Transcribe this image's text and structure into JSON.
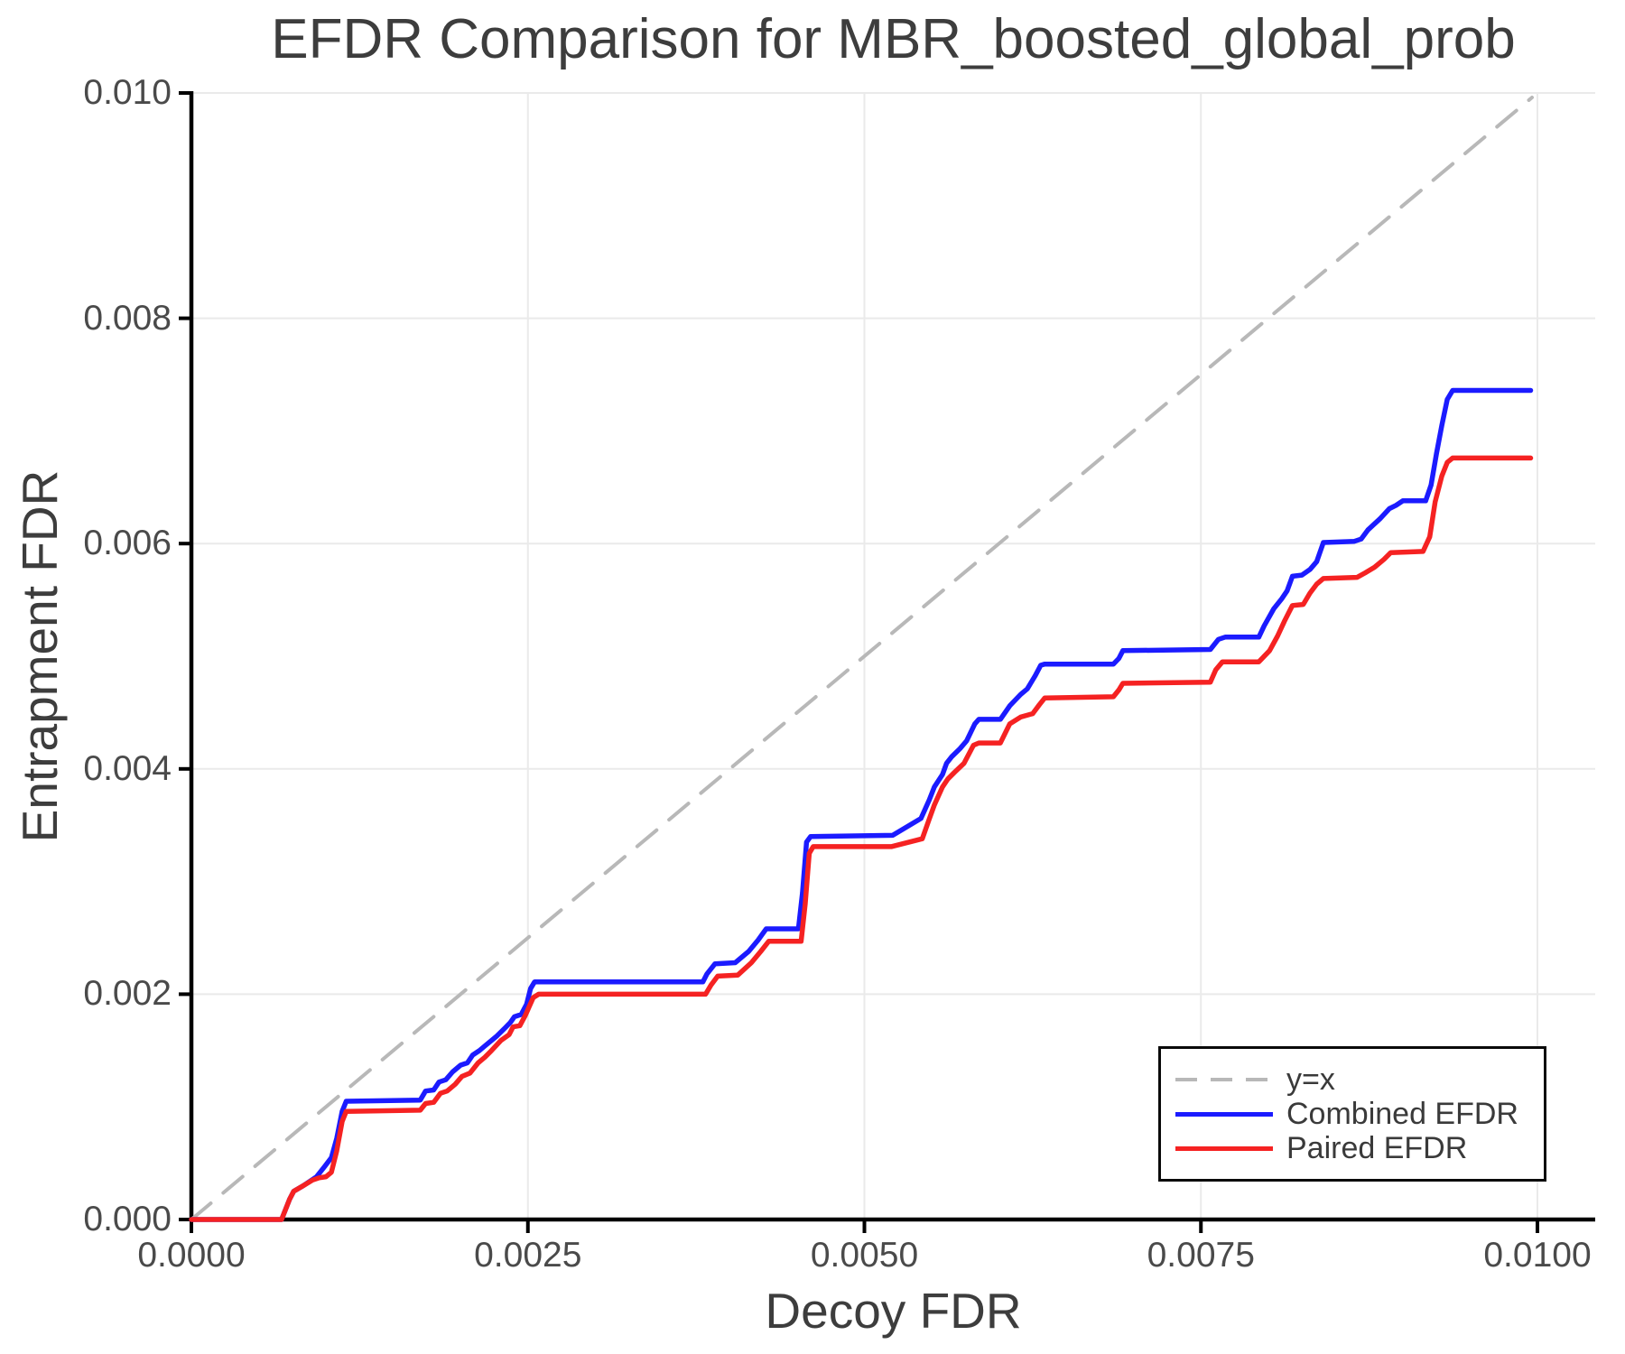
{
  "chart": {
    "title": "EFDR Comparison for MBR_boosted_global_prob",
    "xlabel": "Decoy FDR",
    "ylabel": "Entrapment FDR"
  },
  "chart_data": {
    "type": "line",
    "title": "EFDR Comparison for MBR_boosted_global_prob",
    "xlabel": "Decoy FDR",
    "ylabel": "Entrapment FDR",
    "xlim": [
      0.0,
      0.010428
    ],
    "ylim": [
      0.0,
      0.01
    ],
    "grid": true,
    "legend_position": "lower right",
    "background": "#ffffff",
    "grid_color": "#eaeaea",
    "spine_color": "#000000",
    "text_color": "#3d3d3d",
    "tick_text_color": "#4a4a4a",
    "x_ticks": {
      "values": [
        0.0,
        0.0025,
        0.005,
        0.0075,
        0.01
      ],
      "labels": [
        "0.0000",
        "0.0025",
        "0.0050",
        "0.0075",
        "0.0100"
      ]
    },
    "y_ticks": {
      "values": [
        0.0,
        0.002,
        0.004,
        0.006,
        0.008,
        0.01
      ],
      "labels": [
        "0.000",
        "0.002",
        "0.004",
        "0.006",
        "0.008",
        "0.010"
      ]
    },
    "series": [
      {
        "name": "y=x",
        "color": "#b8b8b8",
        "dashed": true,
        "width": 4,
        "points": [
          [
            0.0,
            0.0
          ],
          [
            0.00996,
            0.00996
          ]
        ]
      },
      {
        "name": "Combined EFDR",
        "color": "#1b1bff",
        "dashed": false,
        "width": 5.5,
        "points": [
          [
            0.0,
            0.0
          ],
          [
            0.00067,
            0.0
          ],
          [
            0.00073,
            0.00018
          ],
          [
            0.00076,
            0.00025
          ],
          [
            0.00083,
            0.0003
          ],
          [
            0.00093,
            0.00038
          ],
          [
            0.00099,
            0.00047
          ],
          [
            0.00104,
            0.00055
          ],
          [
            0.00108,
            0.00072
          ],
          [
            0.00112,
            0.00096
          ],
          [
            0.00115,
            0.00105
          ],
          [
            0.0017,
            0.00106
          ],
          [
            0.00174,
            0.00114
          ],
          [
            0.0018,
            0.00115
          ],
          [
            0.00184,
            0.00122
          ],
          [
            0.00189,
            0.00124
          ],
          [
            0.00194,
            0.00131
          ],
          [
            0.002,
            0.00137
          ],
          [
            0.00205,
            0.00139
          ],
          [
            0.00209,
            0.00146
          ],
          [
            0.00214,
            0.0015
          ],
          [
            0.00218,
            0.00154
          ],
          [
            0.00223,
            0.00159
          ],
          [
            0.00227,
            0.00163
          ],
          [
            0.00233,
            0.0017
          ],
          [
            0.00237,
            0.00175
          ],
          [
            0.0024,
            0.0018
          ],
          [
            0.00245,
            0.00182
          ],
          [
            0.00249,
            0.00191
          ],
          [
            0.00252,
            0.00205
          ],
          [
            0.00255,
            0.00211
          ],
          [
            0.0038,
            0.00211
          ],
          [
            0.00383,
            0.00218
          ],
          [
            0.00389,
            0.00227
          ],
          [
            0.00404,
            0.00228
          ],
          [
            0.00414,
            0.00238
          ],
          [
            0.00421,
            0.00248
          ],
          [
            0.00427,
            0.00258
          ],
          [
            0.00451,
            0.00258
          ],
          [
            0.00454,
            0.0029
          ],
          [
            0.00457,
            0.00335
          ],
          [
            0.0046,
            0.0034
          ],
          [
            0.00521,
            0.00341
          ],
          [
            0.00542,
            0.00356
          ],
          [
            0.00548,
            0.00372
          ],
          [
            0.00552,
            0.00384
          ],
          [
            0.00558,
            0.00395
          ],
          [
            0.00561,
            0.00405
          ],
          [
            0.00565,
            0.00411
          ],
          [
            0.00571,
            0.00418
          ],
          [
            0.00576,
            0.00425
          ],
          [
            0.00582,
            0.0044
          ],
          [
            0.00585,
            0.00444
          ],
          [
            0.00601,
            0.00444
          ],
          [
            0.00608,
            0.00456
          ],
          [
            0.00616,
            0.00466
          ],
          [
            0.00621,
            0.00471
          ],
          [
            0.00627,
            0.00483
          ],
          [
            0.00631,
            0.00492
          ],
          [
            0.00634,
            0.00493
          ],
          [
            0.00685,
            0.00493
          ],
          [
            0.00689,
            0.00498
          ],
          [
            0.00692,
            0.00505
          ],
          [
            0.00757,
            0.00506
          ],
          [
            0.00763,
            0.00515
          ],
          [
            0.00768,
            0.00517
          ],
          [
            0.00793,
            0.00517
          ],
          [
            0.00797,
            0.00527
          ],
          [
            0.00804,
            0.00542
          ],
          [
            0.0081,
            0.00551
          ],
          [
            0.00814,
            0.00558
          ],
          [
            0.00818,
            0.00571
          ],
          [
            0.00825,
            0.00572
          ],
          [
            0.00831,
            0.00577
          ],
          [
            0.00836,
            0.00584
          ],
          [
            0.00841,
            0.00601
          ],
          [
            0.00864,
            0.00602
          ],
          [
            0.00869,
            0.00604
          ],
          [
            0.00874,
            0.00612
          ],
          [
            0.00883,
            0.00622
          ],
          [
            0.0089,
            0.00631
          ],
          [
            0.00895,
            0.00634
          ],
          [
            0.009,
            0.00638
          ],
          [
            0.00917,
            0.00638
          ],
          [
            0.00921,
            0.00652
          ],
          [
            0.00925,
            0.0068
          ],
          [
            0.00929,
            0.00705
          ],
          [
            0.00933,
            0.00728
          ],
          [
            0.00937,
            0.00736
          ],
          [
            0.00995,
            0.00736
          ]
        ]
      },
      {
        "name": "Paired EFDR",
        "color": "#f52222",
        "dashed": false,
        "width": 5.5,
        "points": [
          [
            0.0,
            0.0
          ],
          [
            0.00067,
            0.0
          ],
          [
            0.00073,
            0.00018
          ],
          [
            0.00076,
            0.00025
          ],
          [
            0.00083,
            0.0003
          ],
          [
            0.0009,
            0.00035
          ],
          [
            0.00095,
            0.00037
          ],
          [
            0.001,
            0.00038
          ],
          [
            0.00104,
            0.00042
          ],
          [
            0.00108,
            0.00061
          ],
          [
            0.00112,
            0.00087
          ],
          [
            0.00115,
            0.00096
          ],
          [
            0.0017,
            0.00097
          ],
          [
            0.00174,
            0.00103
          ],
          [
            0.0018,
            0.00104
          ],
          [
            0.00185,
            0.00112
          ],
          [
            0.0019,
            0.00114
          ],
          [
            0.00196,
            0.0012
          ],
          [
            0.00201,
            0.00127
          ],
          [
            0.00207,
            0.0013
          ],
          [
            0.00213,
            0.00139
          ],
          [
            0.00218,
            0.00144
          ],
          [
            0.00223,
            0.0015
          ],
          [
            0.0023,
            0.00159
          ],
          [
            0.00236,
            0.00164
          ],
          [
            0.00239,
            0.00171
          ],
          [
            0.00244,
            0.00172
          ],
          [
            0.00248,
            0.00181
          ],
          [
            0.00251,
            0.00189
          ],
          [
            0.00254,
            0.00197
          ],
          [
            0.00258,
            0.002
          ],
          [
            0.00382,
            0.002
          ],
          [
            0.00386,
            0.00208
          ],
          [
            0.00391,
            0.00216
          ],
          [
            0.00406,
            0.00217
          ],
          [
            0.00416,
            0.00228
          ],
          [
            0.00423,
            0.00238
          ],
          [
            0.00429,
            0.00247
          ],
          [
            0.00453,
            0.00247
          ],
          [
            0.00456,
            0.0028
          ],
          [
            0.00459,
            0.00325
          ],
          [
            0.00462,
            0.00331
          ],
          [
            0.0052,
            0.00331
          ],
          [
            0.00543,
            0.00338
          ],
          [
            0.00548,
            0.00355
          ],
          [
            0.00552,
            0.00368
          ],
          [
            0.00558,
            0.00384
          ],
          [
            0.00562,
            0.00391
          ],
          [
            0.00567,
            0.00397
          ],
          [
            0.00574,
            0.00405
          ],
          [
            0.00581,
            0.00421
          ],
          [
            0.00585,
            0.00423
          ],
          [
            0.00601,
            0.00423
          ],
          [
            0.00608,
            0.0044
          ],
          [
            0.00616,
            0.00446
          ],
          [
            0.00625,
            0.00449
          ],
          [
            0.0063,
            0.00457
          ],
          [
            0.00634,
            0.00463
          ],
          [
            0.00685,
            0.00464
          ],
          [
            0.00689,
            0.0047
          ],
          [
            0.00692,
            0.00476
          ],
          [
            0.00757,
            0.00477
          ],
          [
            0.00761,
            0.00488
          ],
          [
            0.00766,
            0.00495
          ],
          [
            0.00793,
            0.00495
          ],
          [
            0.00801,
            0.00505
          ],
          [
            0.00807,
            0.00518
          ],
          [
            0.00812,
            0.00531
          ],
          [
            0.00818,
            0.00545
          ],
          [
            0.00826,
            0.00546
          ],
          [
            0.00831,
            0.00556
          ],
          [
            0.00836,
            0.00564
          ],
          [
            0.00841,
            0.00569
          ],
          [
            0.00866,
            0.0057
          ],
          [
            0.00872,
            0.00574
          ],
          [
            0.00879,
            0.00579
          ],
          [
            0.00886,
            0.00586
          ],
          [
            0.00891,
            0.00592
          ],
          [
            0.00915,
            0.00593
          ],
          [
            0.0092,
            0.00606
          ],
          [
            0.00924,
            0.00637
          ],
          [
            0.00929,
            0.0066
          ],
          [
            0.00933,
            0.00672
          ],
          [
            0.00937,
            0.00676
          ],
          [
            0.00995,
            0.00676
          ]
        ]
      }
    ]
  }
}
